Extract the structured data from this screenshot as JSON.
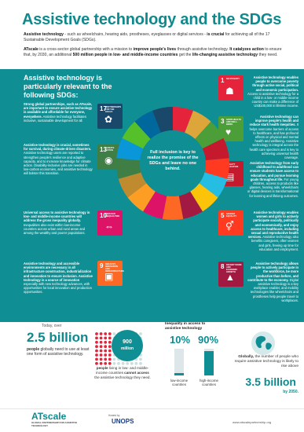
{
  "header": {
    "title": "Assistive technology and the SDGs",
    "intro_1_lead": "Assistive technology",
    "intro_1_body": " - such as wheelchairs, hearing aids, prostheses, eyeglasses or digital services - ",
    "intro_1_emph": "is crucial",
    "intro_1_tail": " for achieving all of the 17 Sustainable Development Goals (SDGs).",
    "intro_2_lead": "ATscale",
    "intro_2_body": " is a cross-sector global partnership with a mission to ",
    "intro_2_emph": "improve people's lives",
    "intro_2_body2": " through assistive technology. ",
    "intro_2_emph2": "It catalyzes action",
    "intro_2_body3": " to ensure that, by 2030, an additional ",
    "intro_2_emph3": "500 million people in low- and middle-income countries",
    "intro_2_body4": " get the ",
    "intro_2_emph4": "life-changing assistive technology",
    "intro_2_tail": " they need."
  },
  "band": {
    "title": "Assistive technology is particularly relevant to the following SDGs:",
    "center": "Full inclusion is key to realize the promise of the SDGs and leave no one behind."
  },
  "left_items": [
    {
      "bold": "Strong global partnerships, such as ATscale, are important to ensure assistive technology is available and affordable for everyone, everywhere.",
      "text": " Assistive technology facilitates inclusive, sustainable development for all."
    },
    {
      "bold": "Assistive technology is crucial, sometimes for survival, during climate-driven disasters.",
      "text": " Assistive technology users are reported to strengthen people's resilience and adaptive capacity, and to increase knowledge for climate action. Disability-inclusive jobs are needed in low-carbon economies, and assistive technology will bolster this transition."
    },
    {
      "bold": "Universal access to assistive technology in low- and middle-income countries will address the gross inequality globally.",
      "text": " Inequalities also exist within low-income countries across urban and rural areas and among the wealthy and poorer populations."
    },
    {
      "bold": "Assistive technology and accessible environments are necessary in all infrastructure construction, industrialization and innovation to ensure inclusion. Assistive technology is a source of innovation",
      "text": " especially with new technology advances, with opportunities for local innovation and production opportunities."
    }
  ],
  "right_items": [
    {
      "bold": "Assistive technology enables people to overcome poverty through active social, political and economic participation.",
      "text": " Access to assistive technology for a child in a low- or middle-income country can make a difference of US$100,000 in lifetime income."
    },
    {
      "bold": "Assistive technology can improve people's health and reduce stark health inequities.",
      "text": " It helps overcome barriers of access to healthcare, and has profound effects on physical and mental health and wellbeing. Assistive technology is integral across the health care spectrum and is key to achieving universal health coverage."
    },
    {
      "bold": "Assistive technology from early childhood to adulthood can ensure students have access to education, and pursue learning goals throughout life.",
      "text": " For young children, access to products like glasses, hearing aids, wheelchairs or digital devices is transformational for learning and lifelong outcomes."
    },
    {
      "bold": "Assistive technology enables women and girls to actively participate socially, politically and economically, and enjoy access to healthcare, including sexual and reproductive health services.",
      "text": " Assistive technology also benefits caregivers, often women and girls, freeing up time for education and employment."
    },
    {
      "bold": "Assistive technology allows people to actively participate in the workforce, be more productive than before, and contribute to the economy.",
      "text": " Digital assistive technology is a key workplace enabler, and mobility technologies like wheelchairs and prostheses help people travel to workplaces."
    }
  ],
  "sdgs": [
    {
      "num": "17",
      "label": "PARTNERSHIPS FOR THE GOALS",
      "glyph": "✿",
      "color": "#19486a"
    },
    {
      "num": "13",
      "label": "CLIMATE ACTION",
      "glyph": "◉",
      "color": "#3f7e44"
    },
    {
      "num": "10",
      "label": "REDUCED INEQUALITIES",
      "glyph": "⇔",
      "color": "#dd1367"
    },
    {
      "num": "9",
      "label": "INDUSTRY, INNOVATION AND INFRASTRUCTURE",
      "glyph": "▣",
      "color": "#fd6925"
    },
    {
      "num": "1",
      "label": "NO POVERTY",
      "glyph": "☗",
      "color": "#e5243b"
    },
    {
      "num": "3",
      "label": "GOOD HEALTH AND WELL-BEING",
      "glyph": "♥",
      "color": "#4c9f38"
    },
    {
      "num": "4",
      "label": "QUALITY EDUCATION",
      "glyph": "▤",
      "color": "#c5192d"
    },
    {
      "num": "5",
      "label": "GENDER EQUALITY",
      "glyph": "⚥",
      "color": "#ff3a21"
    },
    {
      "num": "8",
      "label": "DECENT WORK AND ECONOMIC GROWTH",
      "glyph": "▲",
      "color": "#a21942"
    }
  ],
  "wheel_colors": [
    "#e5243b",
    "#dda63a",
    "#4c9f38",
    "#c5192d",
    "#ff3a21",
    "#26bde2",
    "#fcc30b",
    "#a21942",
    "#fd6925",
    "#dd1367",
    "#fd9d24",
    "#bf8b2e",
    "#3f7e44",
    "#0a97d9",
    "#56c02b",
    "#00689d",
    "#19486a"
  ],
  "stats": {
    "today_label": "Today, over",
    "today_big": "2.5 billion",
    "today_desc_bold": "people",
    "today_desc": " globally need to use at least one form of assistive technology.",
    "bubble_num": "900",
    "bubble_unit": "million",
    "bubble_desc_bold": "people",
    "bubble_desc": " living in low- and middle-income countries ",
    "bubble_desc_bold2": "cannot access",
    "bubble_desc_tail": " the assistive technology they need.",
    "ineq_title": "Inequality in access to assistive technology",
    "low_pct": "10%",
    "low_value": 10,
    "high_pct": "90%",
    "high_value": 90,
    "low_cap": "low-income countries",
    "high_cap": "high-income countries",
    "glob_desc_pre": "Globally, ",
    "glob_desc": "the number of people who require assistive technology is likely to rise above",
    "glob_big": "3.5 billion",
    "glob_year": "by 2050."
  },
  "footer": {
    "logo": "ATscale",
    "logo_sub": "GLOBAL PARTNERSHIP FOR ASSISTIVE TECHNOLOGY",
    "hosted": "Hosted by",
    "unops": "UNOPS",
    "site": "www.atscalepartnership.org"
  }
}
